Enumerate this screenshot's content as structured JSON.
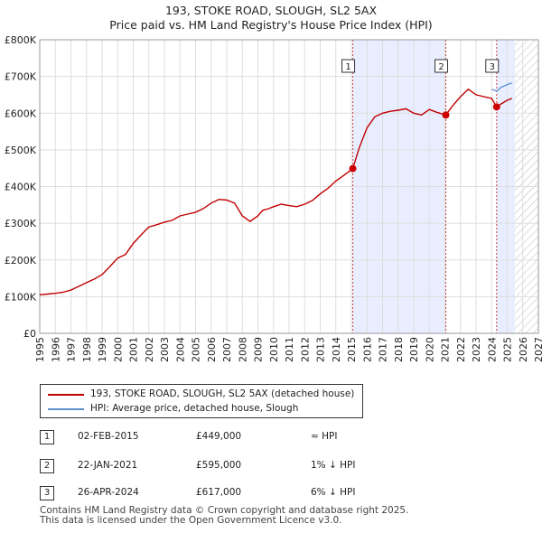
{
  "title_line1": "193, STOKE ROAD, SLOUGH, SL2 5AX",
  "title_line2": "Price paid vs. HM Land Registry's House Price Index (HPI)",
  "colors": {
    "price_line": "#c00000",
    "hpi_line": "#5b8fd0",
    "shade": "#e8eeff",
    "marker": "#cc0000",
    "vline": "#d04040"
  },
  "chart_data": {
    "type": "line",
    "xlim": [
      1995,
      2027
    ],
    "ylim": [
      0,
      800000
    ],
    "x_ticks": [
      1995,
      1996,
      1997,
      1998,
      1999,
      2000,
      2001,
      2002,
      2003,
      2004,
      2005,
      2006,
      2007,
      2008,
      2009,
      2010,
      2011,
      2012,
      2013,
      2014,
      2015,
      2016,
      2017,
      2018,
      2019,
      2020,
      2021,
      2022,
      2023,
      2024,
      2025,
      2026,
      2027
    ],
    "y_ticks": [
      {
        "value": 0,
        "label": "£0"
      },
      {
        "value": 100000,
        "label": "£100K"
      },
      {
        "value": 200000,
        "label": "£200K"
      },
      {
        "value": 300000,
        "label": "£300K"
      },
      {
        "value": 400000,
        "label": "£400K"
      },
      {
        "value": 500000,
        "label": "£500K"
      },
      {
        "value": 600000,
        "label": "£600K"
      },
      {
        "value": 700000,
        "label": "£700K"
      },
      {
        "value": 800000,
        "label": "£800K"
      }
    ],
    "future_from": 2025.5,
    "shaded_ranges": [
      [
        2015.09,
        2021.06
      ],
      [
        2024.32,
        2025.5
      ]
    ],
    "series": [
      {
        "name": "193, STOKE ROAD, SLOUGH, SL2 5AX (detached house)",
        "x": [
          1995.0,
          1995.5,
          1996.0,
          1996.5,
          1997.0,
          1997.5,
          1998.0,
          1998.5,
          1999.0,
          1999.5,
          2000.0,
          2000.5,
          2001.0,
          2001.5,
          2002.0,
          2002.5,
          2003.0,
          2003.5,
          2004.0,
          2004.5,
          2005.0,
          2005.5,
          2006.0,
          2006.5,
          2007.0,
          2007.5,
          2008.0,
          2008.5,
          2009.0,
          2009.3,
          2009.7,
          2010.0,
          2010.5,
          2011.0,
          2011.5,
          2012.0,
          2012.5,
          2013.0,
          2013.5,
          2014.0,
          2014.5,
          2015.09,
          2015.5,
          2016.0,
          2016.5,
          2017.0,
          2017.5,
          2018.0,
          2018.5,
          2019.0,
          2019.5,
          2020.0,
          2020.5,
          2021.06,
          2021.5,
          2022.0,
          2022.5,
          2023.0,
          2023.5,
          2024.0,
          2024.32,
          2024.6,
          2025.0,
          2025.3
        ],
        "values": [
          105000,
          107000,
          109000,
          112000,
          118000,
          128000,
          138000,
          148000,
          160000,
          182000,
          205000,
          215000,
          245000,
          268000,
          290000,
          296000,
          303000,
          308000,
          320000,
          325000,
          330000,
          340000,
          355000,
          365000,
          363000,
          355000,
          320000,
          305000,
          320000,
          335000,
          340000,
          345000,
          352000,
          348000,
          345000,
          352000,
          362000,
          380000,
          395000,
          415000,
          430000,
          449000,
          505000,
          560000,
          590000,
          600000,
          605000,
          608000,
          612000,
          600000,
          595000,
          610000,
          602000,
          595000,
          620000,
          645000,
          665000,
          650000,
          645000,
          640000,
          617000,
          625000,
          635000,
          640000
        ]
      },
      {
        "name": "HPI: Average price, detached house, Slough",
        "x": [
          2024.0,
          2024.32,
          2024.6,
          2025.0,
          2025.3
        ],
        "values": [
          665000,
          660000,
          670000,
          678000,
          682000
        ]
      }
    ],
    "sales": [
      {
        "label": "1",
        "x": 2015.09,
        "value": 449000
      },
      {
        "label": "2",
        "x": 2021.06,
        "value": 595000
      },
      {
        "label": "3",
        "x": 2024.32,
        "value": 617000
      }
    ]
  },
  "legend": {
    "price_label": "193, STOKE ROAD, SLOUGH, SL2 5AX (detached house)",
    "hpi_label": "HPI: Average price, detached house, Slough"
  },
  "sales_table": [
    {
      "num": "1",
      "date": "02-FEB-2015",
      "price": "£449,000",
      "hpi": "≈ HPI"
    },
    {
      "num": "2",
      "date": "22-JAN-2021",
      "price": "£595,000",
      "hpi": "1% ↓ HPI"
    },
    {
      "num": "3",
      "date": "26-APR-2024",
      "price": "£617,000",
      "hpi": "6% ↓ HPI"
    }
  ],
  "footer_line1": "Contains HM Land Registry data © Crown copyright and database right 2025.",
  "footer_line2": "This data is licensed under the Open Government Licence v3.0."
}
